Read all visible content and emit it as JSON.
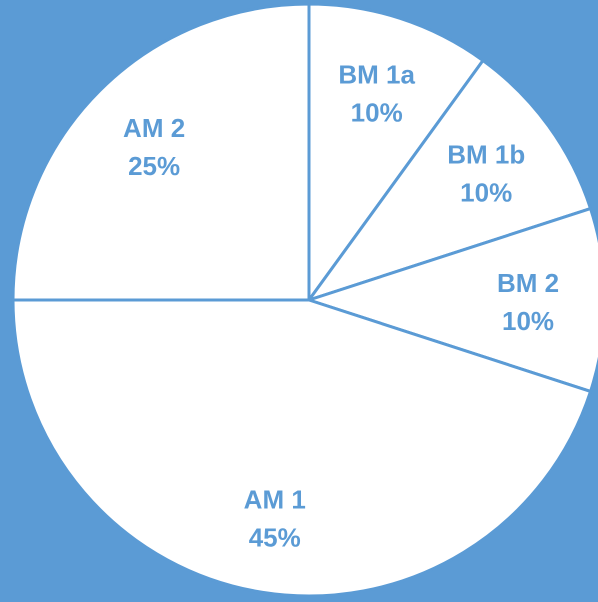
{
  "chart_data": {
    "type": "pie",
    "title": "",
    "start_angle_deg": 0,
    "direction": "clockwise",
    "slices": [
      {
        "label": "BM 1a",
        "value": 10,
        "percent_label": "10%"
      },
      {
        "label": "BM 1b",
        "value": 10,
        "percent_label": "10%"
      },
      {
        "label": "BM 2",
        "value": 10,
        "percent_label": "10%"
      },
      {
        "label": "AM 1",
        "value": 45,
        "percent_label": "45%"
      },
      {
        "label": "AM 2",
        "value": 25,
        "percent_label": "25%"
      }
    ],
    "legend": "none",
    "data_labels": "inside"
  },
  "colors": {
    "background": "#5B9BD5",
    "slice_fill": "#FFFFFF",
    "slice_border": "#5B9BD5",
    "label_text": "#5B9BD5"
  }
}
